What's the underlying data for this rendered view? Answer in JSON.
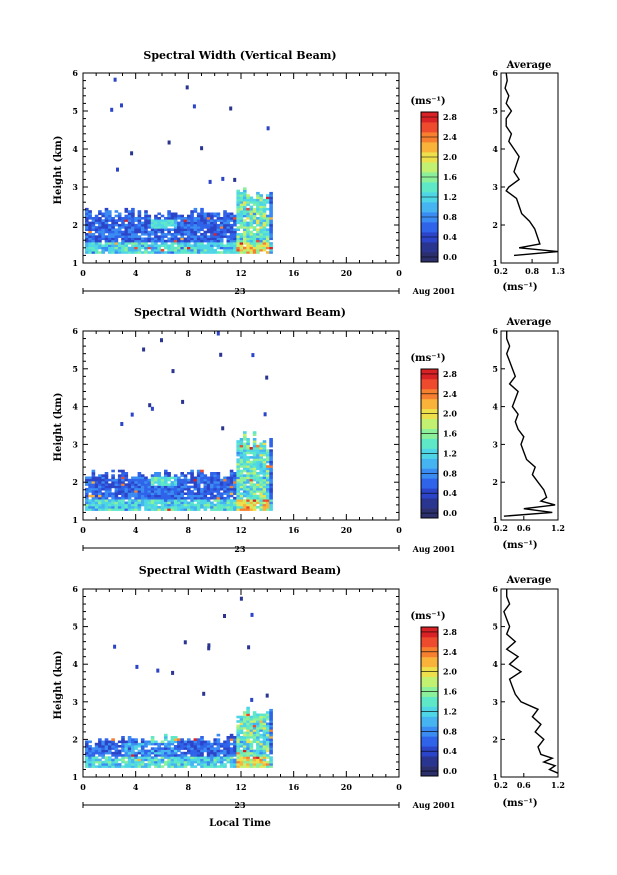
{
  "chart_data": [
    {
      "type": "heatmap",
      "title": "Spectral Width (Vertical Beam)",
      "ylabel": "Height (km)",
      "xlabel": "",
      "xlim": [
        0,
        24
      ],
      "ylim": [
        1,
        6
      ],
      "xticks": [
        "0",
        "4",
        "8",
        "12",
        "16",
        "20",
        "0"
      ],
      "yticks": [
        "1",
        "2",
        "3",
        "4",
        "5",
        "6"
      ],
      "date_label": "23",
      "month_label": "Aug 2001",
      "data_extent": {
        "time_end": 14.2,
        "dense_top_km": 2.3,
        "max_top_km": 2.9
      },
      "colorbar": {
        "unit": "(ms⁻¹)",
        "min": 0.0,
        "max": 2.8,
        "ticks": [
          "0.0",
          "0.4",
          "0.8",
          "1.2",
          "1.6",
          "2.0",
          "2.4",
          "2.8"
        ]
      },
      "average_profile": {
        "title": "Average",
        "xlabel": "(ms⁻¹)",
        "xlim": [
          0.2,
          1.3
        ],
        "xticks": [
          "0.2",
          "0.8",
          "1.3"
        ],
        "heights_km": [
          1.2,
          1.3,
          1.4,
          1.5,
          1.7,
          1.9,
          2.1,
          2.3,
          2.5,
          2.7,
          2.9,
          3.0,
          3.2,
          3.4,
          3.6,
          3.8,
          4.0,
          4.2,
          4.4,
          4.6,
          4.8,
          5.0,
          5.2,
          5.4,
          5.6,
          5.8,
          6.0
        ],
        "values": [
          0.45,
          1.3,
          0.55,
          0.95,
          0.9,
          0.85,
          0.75,
          0.6,
          0.55,
          0.5,
          0.3,
          0.35,
          0.55,
          0.45,
          0.5,
          0.55,
          0.45,
          0.35,
          0.4,
          0.3,
          0.3,
          0.4,
          0.3,
          0.35,
          0.28,
          0.32,
          0.3
        ]
      }
    },
    {
      "type": "heatmap",
      "title": "Spectral Width (Northward Beam)",
      "ylabel": "Height (km)",
      "xlabel": "",
      "xlim": [
        0,
        24
      ],
      "ylim": [
        1,
        6
      ],
      "xticks": [
        "0",
        "4",
        "8",
        "12",
        "16",
        "20",
        "0"
      ],
      "yticks": [
        "1",
        "2",
        "3",
        "4",
        "5",
        "6"
      ],
      "date_label": "23",
      "month_label": "Aug 2001",
      "data_extent": {
        "time_end": 14.2,
        "dense_top_km": 2.2,
        "max_top_km": 3.2
      },
      "colorbar": {
        "unit": "(ms⁻¹)",
        "min": 0.0,
        "max": 2.8,
        "ticks": [
          "0.0",
          "0.4",
          "0.8",
          "1.2",
          "1.6",
          "2.0",
          "2.4",
          "2.8"
        ]
      },
      "average_profile": {
        "title": "Average",
        "xlabel": "(ms⁻¹)",
        "xlim": [
          0.2,
          1.2
        ],
        "xticks": [
          "0.2",
          "0.6",
          "1.2"
        ],
        "heights_km": [
          1.1,
          1.2,
          1.3,
          1.4,
          1.5,
          1.6,
          1.8,
          2.0,
          2.2,
          2.4,
          2.6,
          2.8,
          3.0,
          3.2,
          3.4,
          3.6,
          3.8,
          4.0,
          4.2,
          4.4,
          4.6,
          4.8,
          5.0,
          5.2,
          5.4,
          5.6,
          5.8,
          6.0
        ],
        "values": [
          0.25,
          1.1,
          0.6,
          1.15,
          0.9,
          1.0,
          0.95,
          0.85,
          0.75,
          0.8,
          0.65,
          0.6,
          0.55,
          0.6,
          0.5,
          0.45,
          0.5,
          0.4,
          0.45,
          0.5,
          0.35,
          0.45,
          0.4,
          0.35,
          0.3,
          0.35,
          0.3,
          0.3
        ]
      }
    },
    {
      "type": "heatmap",
      "title": "Spectral Width (Eastward Beam)",
      "ylabel": "Height (km)",
      "xlabel": "Local Time",
      "xlim": [
        0,
        24
      ],
      "ylim": [
        1,
        6
      ],
      "xticks": [
        "0",
        "4",
        "8",
        "12",
        "16",
        "20",
        "0"
      ],
      "yticks": [
        "1",
        "2",
        "3",
        "4",
        "5",
        "6"
      ],
      "date_label": "23",
      "month_label": "Aug 2001",
      "data_extent": {
        "time_end": 14.2,
        "dense_top_km": 2.0,
        "max_top_km": 2.9
      },
      "colorbar": {
        "unit": "(ms⁻¹)",
        "min": 0.0,
        "max": 2.8,
        "ticks": [
          "0.0",
          "0.4",
          "0.8",
          "1.2",
          "1.6",
          "2.0",
          "2.4",
          "2.8"
        ]
      },
      "average_profile": {
        "title": "Average",
        "xlabel": "(ms⁻¹)",
        "xlim": [
          0.2,
          1.2
        ],
        "xticks": [
          "0.2",
          "0.6",
          "1.2"
        ],
        "heights_km": [
          1.1,
          1.2,
          1.3,
          1.4,
          1.5,
          1.6,
          1.8,
          2.0,
          2.2,
          2.4,
          2.6,
          2.8,
          3.0,
          3.2,
          3.4,
          3.6,
          3.8,
          4.0,
          4.2,
          4.4,
          4.6,
          4.8,
          5.0,
          5.2,
          5.4,
          5.6,
          5.8,
          6.0
        ],
        "values": [
          1.2,
          1.05,
          1.15,
          0.95,
          1.1,
          0.9,
          0.85,
          0.95,
          0.8,
          0.9,
          0.75,
          0.85,
          0.55,
          0.45,
          0.4,
          0.35,
          0.55,
          0.35,
          0.5,
          0.3,
          0.45,
          0.3,
          0.35,
          0.3,
          0.25,
          0.35,
          0.3,
          0.3
        ]
      }
    }
  ]
}
